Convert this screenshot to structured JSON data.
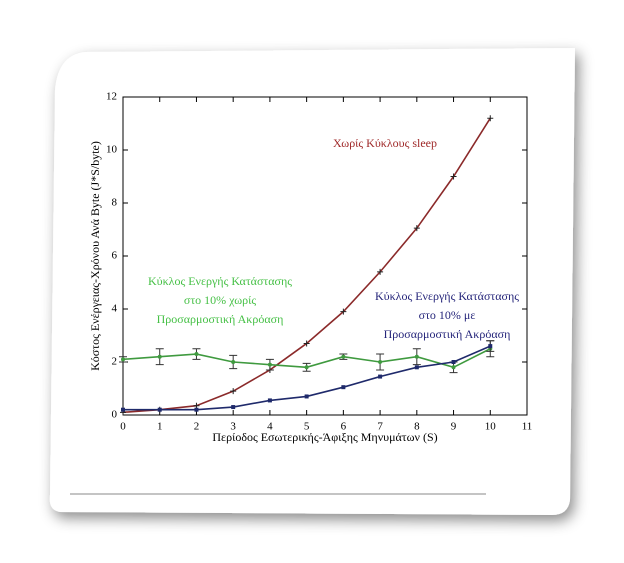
{
  "chart_data": {
    "type": "line",
    "x_label": "Περίοδος Εσωτερικής-Άφιξης Μηνυμάτων  (S)",
    "y_label": "Κόστος Ενέργειας-Χρόνου Ανά Byte (J*S/byte)",
    "x": [
      0,
      1,
      2,
      3,
      4,
      5,
      6,
      7,
      8,
      9,
      10
    ],
    "xlim": [
      0,
      11
    ],
    "xticks": [
      0,
      1,
      2,
      3,
      4,
      5,
      6,
      7,
      8,
      9,
      10,
      11
    ],
    "ylim": [
      0,
      12
    ],
    "yticks": [
      0,
      2,
      4,
      6,
      8,
      10,
      12
    ],
    "series": [
      {
        "label": [
          "Χωρίς Κύκλους sleep"
        ],
        "color": "#8b2a2a",
        "label_color": "#a02a2a",
        "values": [
          0.1,
          0.2,
          0.35,
          0.9,
          1.7,
          2.7,
          3.9,
          5.4,
          7.05,
          9.0,
          11.2
        ],
        "errors": [
          null,
          null,
          null,
          null,
          null,
          null,
          null,
          null,
          null,
          null,
          null
        ]
      },
      {
        "label": [
          "Κύκλος Ενεργής Κατάστασης",
          "στο 10% χωρίς",
          "Προσαρμοστική Ακρόαση"
        ],
        "color": "#3f9a3f",
        "label_color": "#46c046",
        "values": [
          2.1,
          2.2,
          2.3,
          2.0,
          1.9,
          1.8,
          2.2,
          2.0,
          2.2,
          1.8,
          2.5
        ],
        "errors": [
          0.1,
          0.3,
          0.2,
          0.25,
          0.2,
          0.15,
          0.1,
          0.3,
          0.3,
          0.2,
          0.3
        ]
      },
      {
        "label": [
          "Κύκλος Ενεργής Κατάστασης",
          "στο 10% με",
          "Προσαρμοστική Ακρόαση"
        ],
        "color": "#1f2a6b",
        "label_color": "#25257a",
        "values": [
          0.2,
          0.2,
          0.2,
          0.3,
          0.55,
          0.7,
          1.05,
          1.45,
          1.8,
          2.0,
          2.6
        ],
        "errors": [
          null,
          null,
          null,
          null,
          null,
          null,
          null,
          null,
          null,
          null,
          0.2
        ]
      }
    ]
  }
}
